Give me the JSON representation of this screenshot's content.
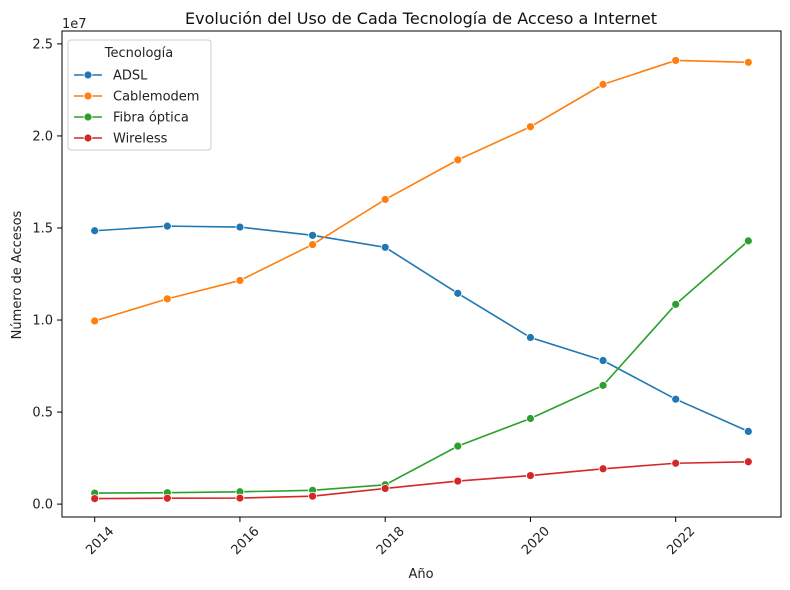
{
  "chart_data": {
    "type": "line",
    "title": "Evolución del Uso de Cada Tecnología de Acceso a Internet",
    "xlabel": "Año",
    "ylabel": "Número de Accesos",
    "y_offset_label": "1e7",
    "x": [
      2014,
      2015,
      2016,
      2017,
      2018,
      2019,
      2020,
      2021,
      2022,
      2023
    ],
    "x_ticks": [
      2014,
      2016,
      2018,
      2020,
      2022
    ],
    "x_tick_labels": [
      "2014",
      "2016",
      "2018",
      "2020",
      "2022"
    ],
    "y_ticks": [
      0,
      5000000,
      10000000,
      15000000,
      20000000,
      25000000
    ],
    "y_tick_labels": [
      "0.0",
      "0.5",
      "1.0",
      "1.5",
      "2.0",
      "2.5"
    ],
    "xlim": [
      2013.55,
      2023.45
    ],
    "ylim": [
      -700000,
      25700000
    ],
    "grid": false,
    "legend": {
      "title": "Tecnología",
      "placement": "top-left"
    },
    "series": [
      {
        "name": "ADSL",
        "color": "#1f77b4",
        "values": [
          14850000,
          15100000,
          15050000,
          14600000,
          13950000,
          11450000,
          9050000,
          7800000,
          5700000,
          3950000
        ]
      },
      {
        "name": "Cablemodem",
        "color": "#ff7f0e",
        "values": [
          9950000,
          11150000,
          12150000,
          14100000,
          16550000,
          18700000,
          20500000,
          22800000,
          24100000,
          24000000
        ]
      },
      {
        "name": "Fibra óptica",
        "color": "#2ca02c",
        "values": [
          600000,
          620000,
          670000,
          750000,
          1050000,
          3150000,
          4650000,
          6450000,
          10850000,
          14300000
        ]
      },
      {
        "name": "Wireless",
        "color": "#d62728",
        "values": [
          300000,
          320000,
          330000,
          430000,
          850000,
          1250000,
          1550000,
          1920000,
          2220000,
          2300000
        ]
      }
    ]
  }
}
